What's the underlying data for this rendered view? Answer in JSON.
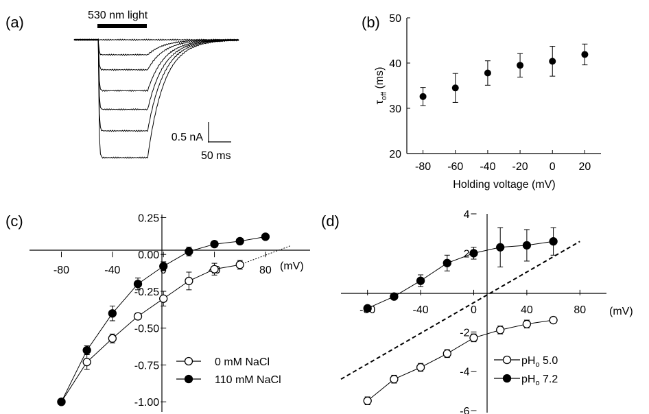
{
  "panels": {
    "a": {
      "label": "(a)",
      "stimulus_label": "530 nm light",
      "scale_current": "0.5 nA",
      "scale_time": "50 ms",
      "trace_steady_levels": [
        0.0,
        -0.28,
        -0.56,
        -0.95,
        -1.3,
        -1.7,
        -2.2
      ]
    },
    "b": {
      "label": "(b)",
      "ylabel_main": "τ",
      "ylabel_sub": "off",
      "ylabel_unit": " (ms)",
      "xlabel": "Holding voltage (mV)"
    },
    "c": {
      "label": "(c)",
      "x_unit": "(mV)"
    },
    "d": {
      "label": "(d)",
      "x_unit": "(mV)"
    }
  },
  "chart_data": [
    {
      "id": "b",
      "type": "scatter",
      "xlabel": "Holding voltage (mV)",
      "ylabel": "τoff (ms)",
      "xlim": [
        -90,
        30
      ],
      "ylim": [
        20,
        50
      ],
      "x_ticks": [
        -80,
        -60,
        -40,
        -20,
        0,
        20
      ],
      "y_ticks": [
        20,
        30,
        40,
        50
      ],
      "series": [
        {
          "x": [
            -80,
            -60,
            -40,
            -20,
            0,
            20
          ],
          "values": [
            32.6,
            34.5,
            37.8,
            39.5,
            40.4,
            41.9
          ],
          "errors": [
            2.0,
            3.2,
            2.7,
            2.6,
            3.3,
            2.3
          ]
        }
      ]
    },
    {
      "id": "c",
      "type": "line",
      "x_unit": "(mV)",
      "xlim": [
        -105,
        115
      ],
      "ylim": [
        -1.05,
        0.28
      ],
      "x_ticks": [
        -80,
        -40,
        0,
        40,
        80
      ],
      "y_ticks": [
        -1.0,
        -0.75,
        -0.5,
        -0.25,
        0.0,
        0.25
      ],
      "x_tick_labels": [
        "-80",
        "-40",
        "0",
        "40",
        "80"
      ],
      "y_tick_labels": [
        "-1.00",
        "-0.75",
        "-0.50",
        "-0.25",
        "0.00",
        "0.25"
      ],
      "series": [
        {
          "name": "0 mM NaCl",
          "marker": "open",
          "x": [
            -80,
            -60,
            -40,
            -20,
            0,
            20,
            40,
            60
          ],
          "values": [
            -1.0,
            -0.73,
            -0.57,
            -0.42,
            -0.3,
            -0.18,
            -0.1,
            -0.07
          ],
          "errors": [
            0,
            0.05,
            0.03,
            0.02,
            0.05,
            0.06,
            0.04,
            0.03
          ]
        },
        {
          "name": "110 mM NaCl",
          "marker": "filled",
          "x": [
            -80,
            -60,
            -40,
            -20,
            0,
            20,
            40,
            60,
            80
          ],
          "values": [
            -1.0,
            -0.65,
            -0.4,
            -0.2,
            -0.08,
            0.02,
            0.07,
            0.09,
            0.12
          ],
          "errors": [
            0,
            0.03,
            0.05,
            0.04,
            0.03,
            0.03,
            0.01,
            0.02,
            0.01
          ]
        }
      ],
      "fit_line": {
        "x": [
          60,
          100
        ],
        "values": [
          -0.07,
          0.06
        ]
      }
    },
    {
      "id": "d",
      "type": "line",
      "x_unit": "(mV)",
      "xlim": [
        -100,
        100
      ],
      "ylim": [
        -6.1,
        4
      ],
      "x_ticks": [
        -80,
        -40,
        0,
        40,
        80
      ],
      "y_ticks": [
        -6,
        -4,
        -2,
        2,
        4
      ],
      "x_tick_labels": [
        "-80",
        "-40",
        "0",
        "40",
        "80"
      ],
      "y_tick_labels": [
        "-6",
        "-4",
        "-2",
        "2",
        "4"
      ],
      "series": [
        {
          "name": "pH",
          "name_sub": "o",
          "name_suffix": " 5.0",
          "marker": "open",
          "x": [
            -80,
            -60,
            -40,
            -20,
            0,
            20,
            40,
            60
          ],
          "values": [
            -5.5,
            -4.4,
            -3.8,
            -3.1,
            -2.3,
            -1.9,
            -1.6,
            -1.4
          ],
          "errors": [
            0.2,
            0.2,
            0.2,
            0.2,
            0.2,
            0.2,
            0.2,
            0.15
          ]
        },
        {
          "name": "pH",
          "name_sub": "o",
          "name_suffix": " 7.2",
          "marker": "filled",
          "x": [
            -80,
            -60,
            -40,
            -20,
            0,
            20,
            40,
            60
          ],
          "values": [
            -0.8,
            -0.2,
            0.6,
            1.5,
            2.0,
            2.3,
            2.4,
            2.6
          ],
          "errors": [
            0.1,
            0.15,
            0.3,
            0.4,
            0.3,
            1.0,
            0.8,
            0.7
          ]
        }
      ],
      "fit_line": {
        "x": [
          -100,
          80
        ],
        "values": [
          -4.4,
          2.6
        ]
      }
    }
  ]
}
